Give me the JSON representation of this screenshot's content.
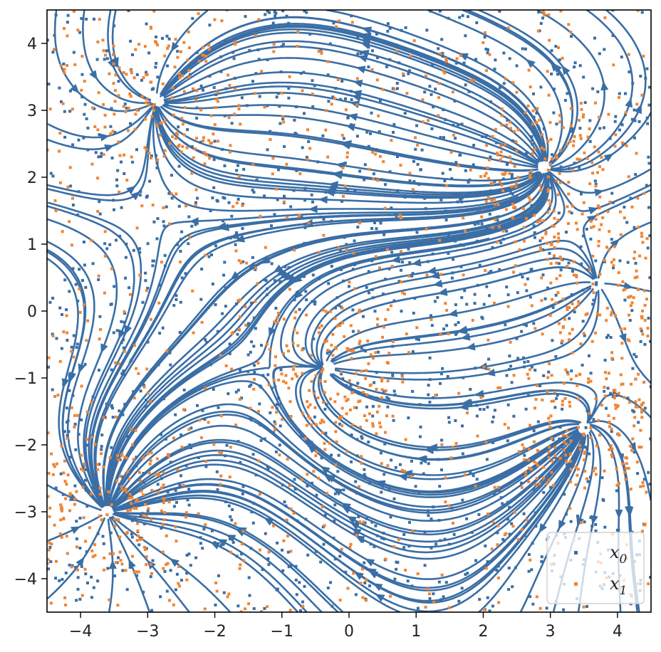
{
  "chart_data": {
    "type": "scatter",
    "xlim": [
      -4.5,
      4.5
    ],
    "ylim": [
      -4.5,
      4.5
    ],
    "xticks": [
      "−4",
      "−3",
      "−2",
      "−1",
      "0",
      "1",
      "2",
      "3",
      "4"
    ],
    "yticks": [
      "−4",
      "−3",
      "−2",
      "−1",
      "0",
      "1",
      "2",
      "3",
      "4"
    ],
    "xtick_values": [
      -4,
      -3,
      -2,
      -1,
      0,
      1,
      2,
      3,
      4
    ],
    "ytick_values": [
      -4,
      -3,
      -2,
      -1,
      0,
      1,
      2,
      3,
      4
    ],
    "grid": false,
    "legend_position": "lower-right",
    "legend": [
      {
        "base": "x",
        "sub": "0",
        "color": "#3a6ea5"
      },
      {
        "base": "x",
        "sub": "1",
        "color": "#ef8534"
      }
    ],
    "streamline_color": "#3a6ea5",
    "fixed_points": [
      {
        "x": -2.85,
        "y": 3.15
      },
      {
        "x": 2.9,
        "y": 2.15
      },
      {
        "x": -0.3,
        "y": -0.85
      },
      {
        "x": 3.5,
        "y": -1.75
      },
      {
        "x": -3.6,
        "y": -3.0
      },
      {
        "x": 3.7,
        "y": 0.4
      }
    ],
    "series": [
      {
        "legend_index": 0,
        "count": 1500
      },
      {
        "legend_index": 1,
        "count": 1500
      }
    ],
    "xlabel": "",
    "ylabel": "",
    "title": ""
  }
}
